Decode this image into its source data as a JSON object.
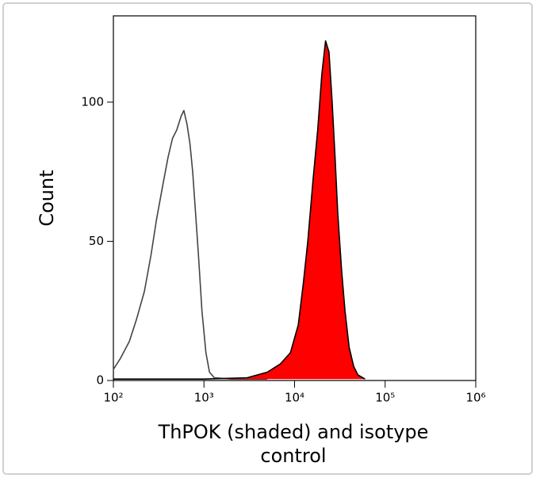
{
  "chart_data": {
    "type": "line",
    "xlabel": "ThPOK (shaded) and isotype control",
    "ylabel": "Count",
    "xscale": "log",
    "xlim": [
      100,
      1000000
    ],
    "xticks": [
      {
        "value": 100,
        "label": "10²"
      },
      {
        "value": 1000,
        "label": "10³"
      },
      {
        "value": 10000,
        "label": "10⁴"
      },
      {
        "value": 100000,
        "label": "10⁵"
      },
      {
        "value": 1000000,
        "label": "10⁶"
      }
    ],
    "ylim": [
      0,
      131
    ],
    "yticks": [
      0,
      50,
      100
    ],
    "series": [
      {
        "name": "isotype control",
        "color": "#444444",
        "fill": false,
        "x": [
          100,
          120,
          150,
          180,
          220,
          260,
          300,
          350,
          400,
          450,
          500,
          560,
          600,
          650,
          700,
          750,
          800,
          870,
          950,
          1050,
          1150,
          1300,
          2000,
          5000
        ],
        "values": [
          4,
          8,
          14,
          22,
          32,
          45,
          58,
          70,
          80,
          87,
          90,
          95,
          97,
          92,
          85,
          75,
          62,
          45,
          25,
          10,
          3,
          1,
          0.5,
          0.5
        ]
      },
      {
        "name": "ThPOK",
        "color": "#ff0000",
        "fill": true,
        "x": [
          100,
          1000,
          3000,
          5000,
          7000,
          9000,
          11000,
          12500,
          14000,
          16000,
          18000,
          20000,
          22000,
          24000,
          26000,
          28000,
          30000,
          33000,
          36000,
          40000,
          45000,
          50000,
          60000
        ],
        "values": [
          0.5,
          0.5,
          1,
          3,
          6,
          10,
          20,
          35,
          50,
          72,
          90,
          110,
          122,
          118,
          100,
          80,
          60,
          40,
          25,
          12,
          5,
          2,
          0.5
        ]
      }
    ]
  }
}
